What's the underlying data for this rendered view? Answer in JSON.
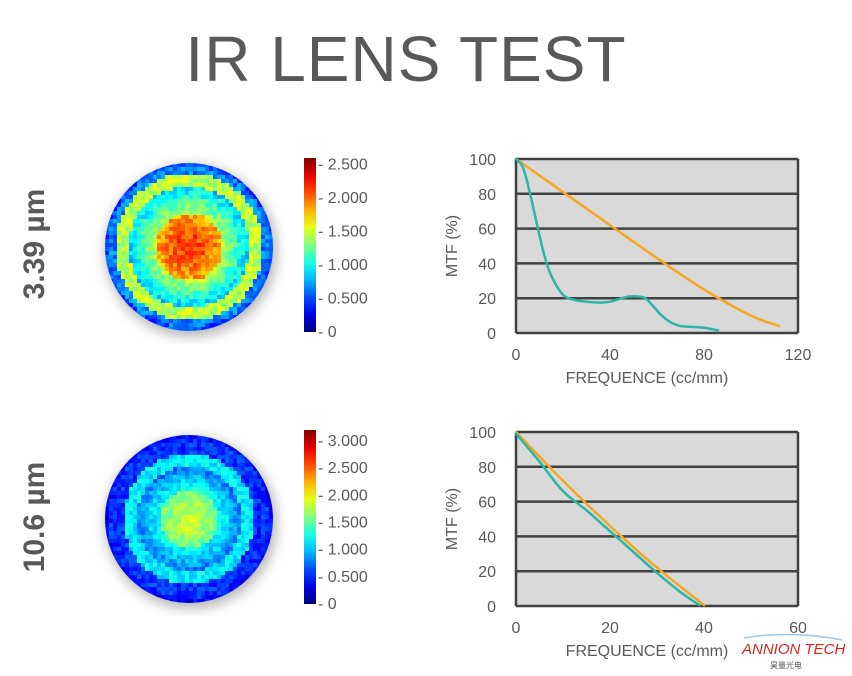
{
  "title": "IR LENS TEST",
  "rows": [
    {
      "wavelength": "3.39 µm",
      "colorbar": {
        "ticks": [
          "2.500",
          "2.000",
          "1.500",
          "1.000",
          "0.500",
          "0"
        ],
        "range": [
          0,
          2.6
        ]
      },
      "map": {
        "center_value": 2.2,
        "ring_value": 1.5,
        "edge_value": 0.5,
        "ring_radius": 0.72
      }
    },
    {
      "wavelength": "10.6 µm",
      "colorbar": {
        "ticks": [
          "3.000",
          "2.500",
          "2.000",
          "1.500",
          "1.000",
          "0.500",
          "0"
        ],
        "range": [
          0,
          3.2
        ]
      },
      "map": {
        "center_value": 1.9,
        "ring_value": 1.2,
        "edge_value": 0.4,
        "ring_radius": 0.62
      }
    }
  ],
  "chart_data": [
    {
      "type": "line",
      "xlabel": "FREQUENCE (cc/mm)",
      "ylabel": "MTF (%)",
      "xlim": [
        0,
        120
      ],
      "ylim": [
        0,
        100
      ],
      "xticks": [
        0,
        40,
        80,
        120
      ],
      "yticks": [
        0,
        20,
        40,
        60,
        80,
        100
      ],
      "grid": true,
      "series": [
        {
          "color": "#f5a623",
          "x": [
            0,
            20,
            40,
            60,
            80,
            100,
            112
          ],
          "y": [
            100,
            81,
            62,
            43,
            25,
            10,
            4
          ]
        },
        {
          "color": "#2bb5a5",
          "x": [
            0,
            3,
            6,
            9,
            12,
            15,
            20,
            25,
            30,
            35,
            40,
            45,
            48,
            52,
            55,
            58,
            62,
            66,
            70,
            75,
            80,
            86
          ],
          "y": [
            100,
            95,
            80,
            62,
            45,
            33,
            22,
            19,
            18,
            17.5,
            18,
            20,
            21,
            21,
            20,
            16,
            10,
            6,
            4,
            3.5,
            3,
            1.5
          ]
        }
      ]
    },
    {
      "type": "line",
      "xlabel": "FREQUENCE (cc/mm)",
      "ylabel": "MTF (%)",
      "xlim": [
        0,
        60
      ],
      "ylim": [
        0,
        100
      ],
      "xticks": [
        0,
        20,
        40,
        60
      ],
      "yticks": [
        0,
        20,
        40,
        60,
        80,
        100
      ],
      "grid": true,
      "series": [
        {
          "color": "#f5a623",
          "x": [
            0,
            10,
            20,
            30,
            40
          ],
          "y": [
            100,
            72,
            46,
            22,
            0.5
          ]
        },
        {
          "color": "#2bb5a5",
          "x": [
            0,
            5,
            10,
            15,
            20,
            25,
            30,
            35,
            39
          ],
          "y": [
            99,
            83,
            66,
            55,
            43,
            31,
            19,
            8,
            0.5
          ]
        }
      ]
    }
  ],
  "logo": {
    "brand": "ANNION TECH",
    "sub": "昊量光电",
    "color": "#d7281e"
  }
}
